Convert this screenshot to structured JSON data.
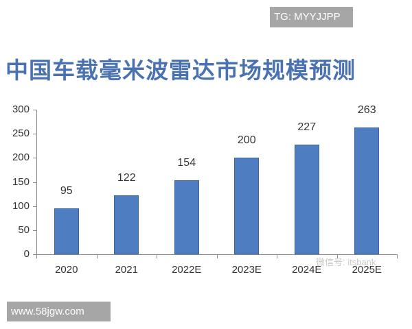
{
  "badges": {
    "top_right": "TG: MYYJJPP",
    "bottom_left": "www.58jgw.com"
  },
  "watermark": "微信号: itsbank",
  "chart_data": {
    "type": "bar",
    "title": "中国车载毫米波雷达市场规模预测",
    "categories": [
      "2020",
      "2021",
      "2022E",
      "2023E",
      "2024E",
      "2025E"
    ],
    "values": [
      95,
      122,
      154,
      200,
      227,
      263
    ],
    "data_labels": [
      "95",
      "122",
      "154",
      "200",
      "227",
      "263"
    ],
    "xlabel": "",
    "ylabel": "",
    "ylim": [
      0,
      300
    ],
    "yticks": [
      "0",
      "50",
      "100",
      "150",
      "200",
      "250",
      "300"
    ],
    "grid": false,
    "legend": null,
    "bar_color": "#4f7dc2",
    "title_color": "#4a72b0"
  }
}
